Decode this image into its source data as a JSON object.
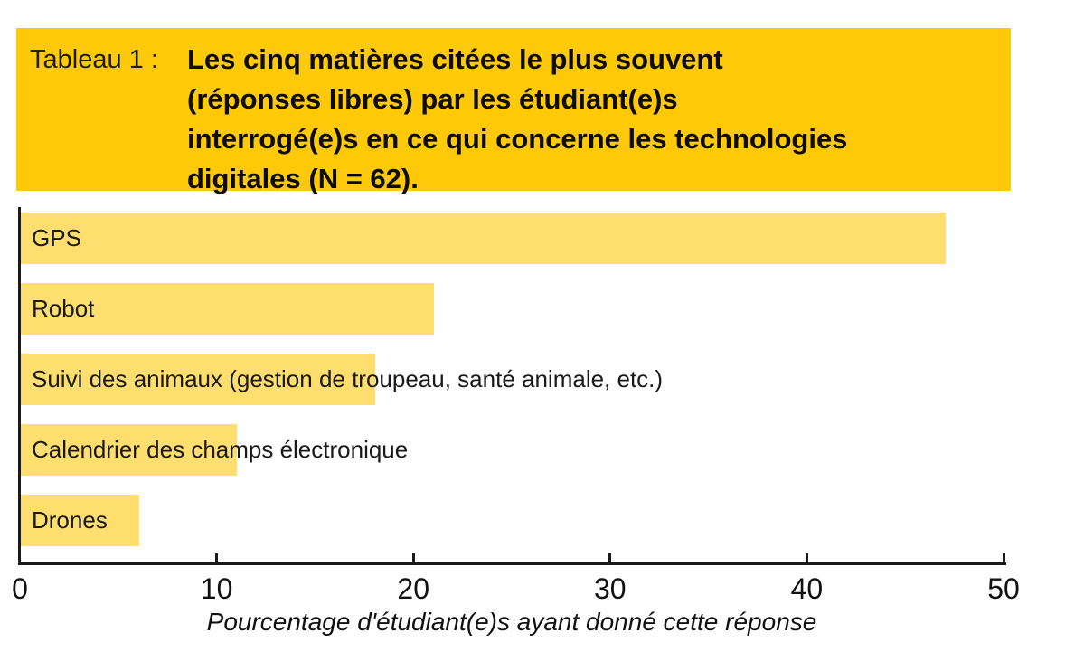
{
  "figure": {
    "label": "Tableau 1 :",
    "title_lines": [
      "Les cinq matières citées le plus souvent",
      "(réponses libres) par les étudiant(e)s",
      "interrogé(e)s en ce qui concerne les technologies",
      "digitales (N = 62)."
    ],
    "colors": {
      "header_bg": "#fdc908",
      "bar_fill": "#fdde6e",
      "axis": "#1a1a1a",
      "text": "#111111"
    }
  },
  "chart_data": {
    "type": "bar",
    "orientation": "horizontal",
    "categories": [
      "GPS",
      "Robot",
      "Suivi des animaux (gestion de troupeau, santé animale, etc.)",
      "Calendrier des champs électronique",
      "Drones"
    ],
    "values": [
      47,
      21,
      18,
      11,
      6
    ],
    "xlabel": "Pourcentage d'étudiant(e)s ayant donné cette réponse",
    "xlim": [
      0,
      50
    ],
    "xticks": [
      0,
      10,
      20,
      30,
      40,
      50
    ],
    "grid": false,
    "legend": false
  }
}
